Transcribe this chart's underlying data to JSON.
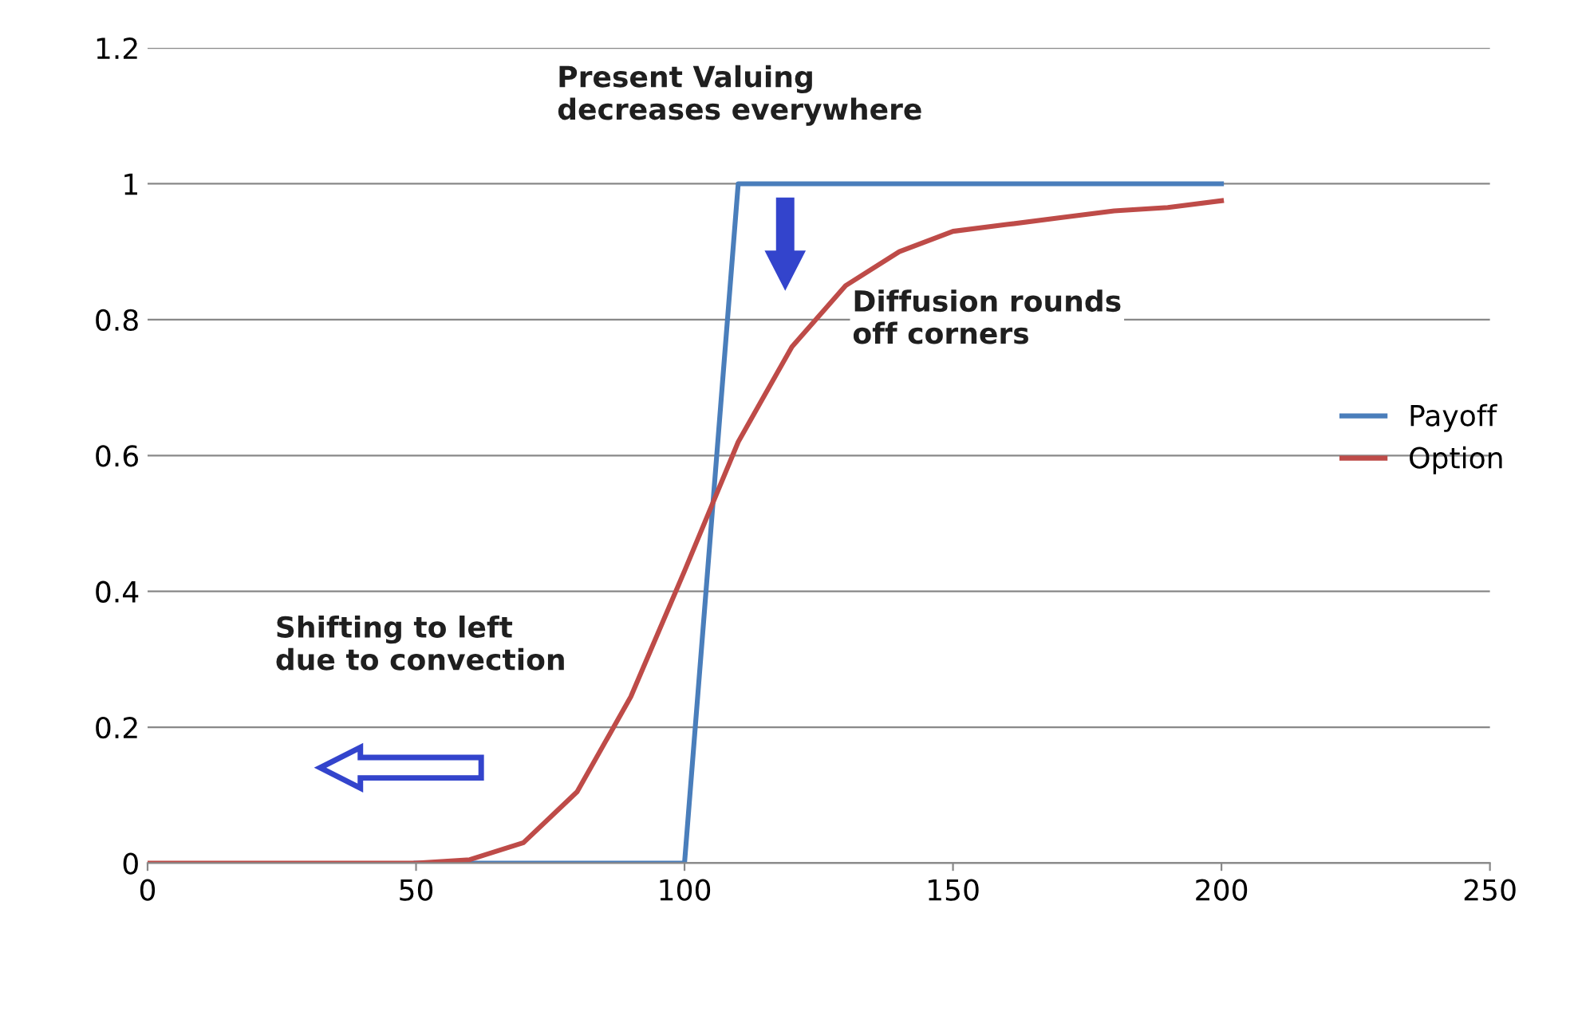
{
  "chart_data": {
    "type": "line",
    "x": [
      0,
      10,
      20,
      30,
      40,
      50,
      60,
      70,
      80,
      90,
      100,
      110,
      120,
      130,
      140,
      150,
      160,
      170,
      180,
      190,
      200
    ],
    "series": [
      {
        "name": "Payoff",
        "color": "#4a7ebb",
        "values": [
          null,
          null,
          null,
          null,
          null,
          0,
          0,
          0,
          0,
          0,
          0,
          1,
          1,
          1,
          1,
          1,
          1,
          1,
          1,
          1,
          1
        ]
      },
      {
        "name": "Option",
        "color": "#be4b48",
        "values": [
          0,
          0,
          0,
          0,
          0,
          0,
          0.005,
          0.03,
          0.105,
          0.245,
          0.43,
          0.62,
          0.76,
          0.85,
          0.9,
          0.93,
          0.94,
          0.95,
          0.96,
          0.965,
          0.975
        ]
      }
    ],
    "xlim": [
      0,
      250
    ],
    "xticks": [
      0,
      50,
      100,
      150,
      200,
      250
    ],
    "ylim": [
      0,
      1.2
    ],
    "yticks": [
      0,
      0.2,
      0.4,
      0.6,
      0.8,
      1,
      1.2
    ],
    "grid": "y",
    "legend": "right",
    "marker": "none",
    "line_style": "solid",
    "annotations": [
      "Present Valuing\ndecreases everywhere",
      "Diffusion rounds\noff corners",
      "Shifting to left\ndue to convection"
    ]
  }
}
